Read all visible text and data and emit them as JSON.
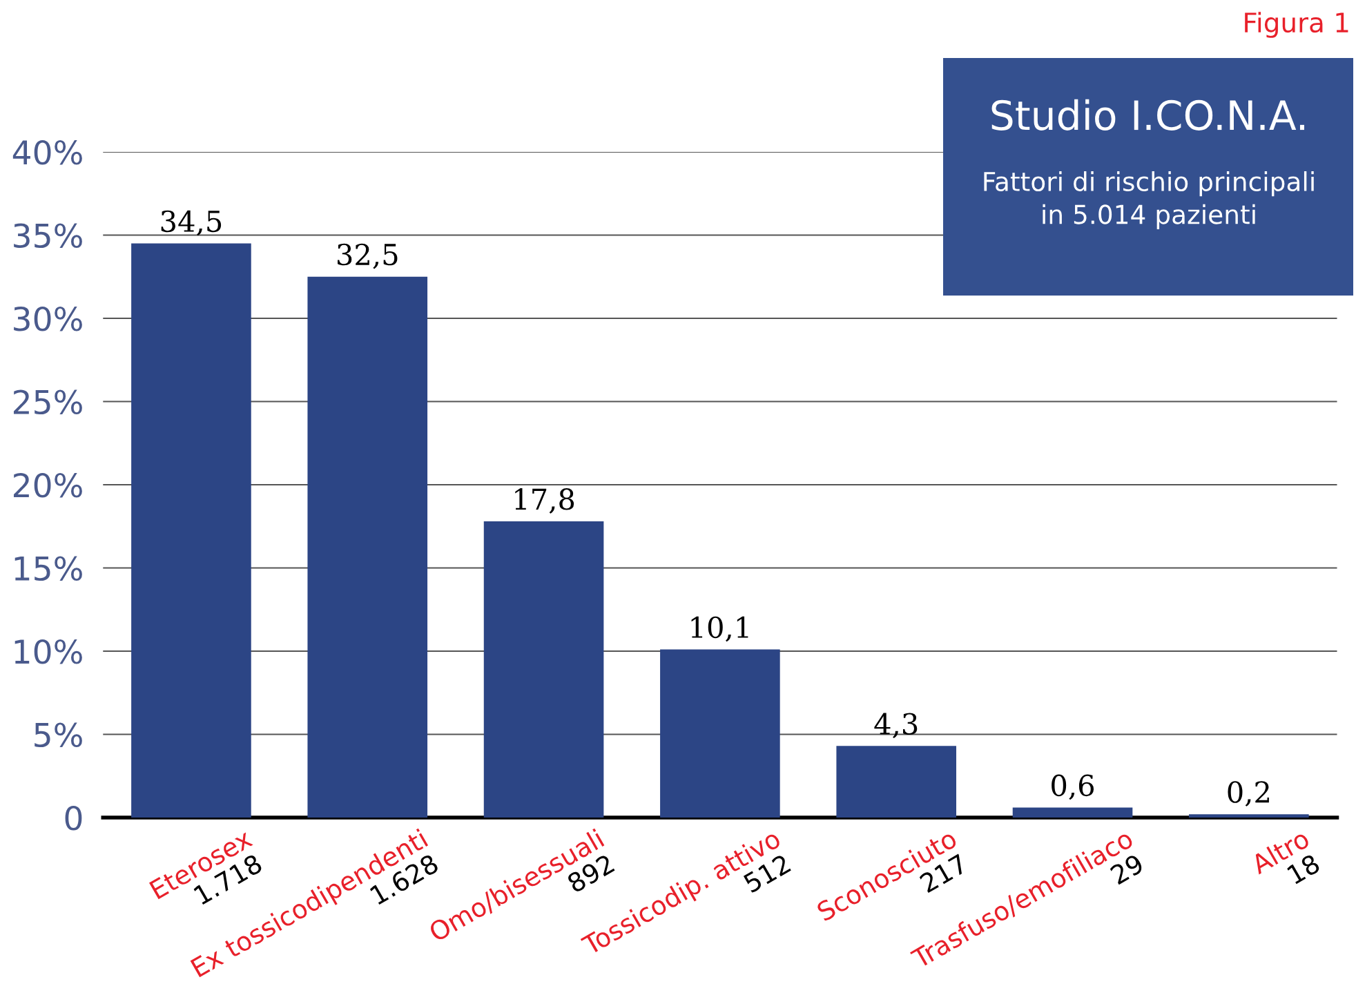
{
  "chart_data": {
    "type": "bar",
    "title": "Studio I.CO.N.A.",
    "subtitle": "Fattori di rischio principali\nin 5.014 pazienti",
    "categories": [
      "Eterosex\n1.718",
      "Ex tossicodipendenti\n1.628",
      "Omo/bisessuali\n892",
      "Tossicodip. attivo\n512",
      "Sconosciuto\n217",
      "Trasfuso/emofiliaco\n29",
      "Altro\n18"
    ],
    "values": [
      34.5,
      32.5,
      17.8,
      10.1,
      4.3,
      0.6,
      0.2
    ],
    "value_labels": [
      "34,5",
      "32,5",
      "17,8",
      "10,1",
      "4,3",
      "0,6",
      "0,2"
    ],
    "color": "#2c4585",
    "ylim": [
      0,
      40
    ],
    "yticks": [
      {
        "value": 0,
        "label": "0"
      },
      {
        "value": 5,
        "label": "5%"
      },
      {
        "value": 10,
        "label": "10%"
      },
      {
        "value": 15,
        "label": "15%"
      },
      {
        "value": 20,
        "label": "20%"
      },
      {
        "value": 25,
        "label": "25%"
      },
      {
        "value": 30,
        "label": "30%"
      },
      {
        "value": 35,
        "label": "35%"
      },
      {
        "value": 40,
        "label": "40%"
      }
    ],
    "grid": "y",
    "annotations": [
      "Figura 1"
    ]
  }
}
